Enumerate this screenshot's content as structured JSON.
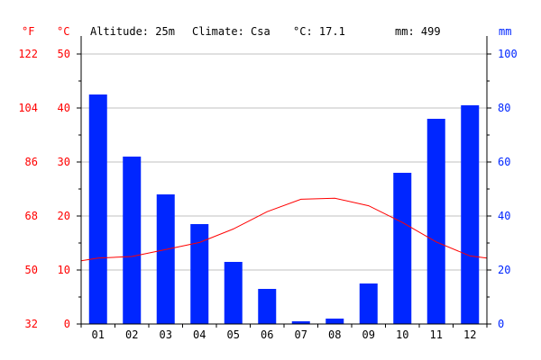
{
  "header": {
    "unit_f": "°F",
    "unit_c": "°C",
    "unit_mm": "mm",
    "altitude": "Altitude: 25m",
    "climate": "Climate: Csa",
    "mean_temp": "°C: 17.1",
    "annual_precip": "mm: 499"
  },
  "chart_data": {
    "type": "bar",
    "categories": [
      "01",
      "02",
      "03",
      "04",
      "05",
      "06",
      "07",
      "08",
      "09",
      "10",
      "11",
      "12"
    ],
    "series": [
      {
        "kind": "bar",
        "axis": "right",
        "values": [
          85,
          62,
          48,
          37,
          23,
          13,
          1,
          2,
          15,
          56,
          76,
          81
        ]
      },
      {
        "kind": "line",
        "axis": "left",
        "values": [
          12.2,
          12.5,
          13.8,
          15.1,
          17.6,
          20.8,
          23.1,
          23.3,
          21.9,
          18.8,
          15.2,
          12.6
        ]
      }
    ],
    "left_axis": {
      "ylim": [
        0,
        50
      ],
      "ticks": [
        0,
        10,
        20,
        30,
        40,
        50
      ]
    },
    "fahrenheit_axis": {
      "ticks": [
        32,
        50,
        68,
        86,
        104,
        122
      ]
    },
    "right_axis": {
      "ylim": [
        0,
        100
      ],
      "ticks": [
        0,
        20,
        40,
        60,
        80,
        100
      ]
    },
    "grid": true,
    "colors": {
      "bar": "#0026ff",
      "line": "#ff0000",
      "temp_text": "#ff0000",
      "precip_text": "#0026ff",
      "grid": "#c0c0c0"
    }
  }
}
